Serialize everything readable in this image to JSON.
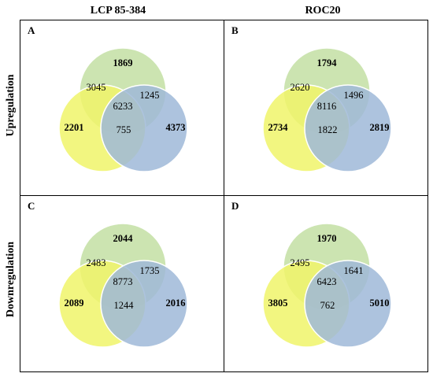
{
  "columns": [
    "LCP 85-384",
    "ROC20"
  ],
  "rows": [
    "Upregulation",
    "Downregulation"
  ],
  "colors": {
    "green": "#c3dfa3",
    "yellow": "#f0f56a",
    "blue": "#9fb8d8",
    "stroke": "#ffffff"
  },
  "panels": [
    {
      "letter": "A",
      "green_only": "1869",
      "yellow_only": "2201",
      "blue_only": "4373",
      "yellow_green": "3045",
      "green_blue": "1245",
      "yellow_blue": "755",
      "center": "6233"
    },
    {
      "letter": "B",
      "green_only": "1794",
      "yellow_only": "2734",
      "blue_only": "2819",
      "yellow_green": "2620",
      "green_blue": "1496",
      "yellow_blue": "1822",
      "center": "8116"
    },
    {
      "letter": "C",
      "green_only": "2044",
      "yellow_only": "2089",
      "blue_only": "2016",
      "yellow_green": "2483",
      "green_blue": "1735",
      "yellow_blue": "1244",
      "center": "8773"
    },
    {
      "letter": "D",
      "green_only": "1970",
      "yellow_only": "3805",
      "blue_only": "5010",
      "yellow_green": "2495",
      "green_blue": "1641",
      "yellow_blue": "762",
      "center": "6423"
    }
  ]
}
